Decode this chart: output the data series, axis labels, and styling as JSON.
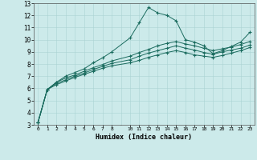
{
  "xlabel": "Humidex (Indice chaleur)",
  "bg_color": "#cceaea",
  "line_color": "#1a6b5e",
  "grid_color": "#aad4d4",
  "xlim": [
    -0.5,
    23.5
  ],
  "ylim": [
    3,
    13
  ],
  "xticks": [
    0,
    1,
    2,
    3,
    4,
    5,
    6,
    7,
    8,
    10,
    11,
    12,
    13,
    14,
    15,
    16,
    17,
    18,
    19,
    20,
    21,
    22,
    23
  ],
  "xtick_labels": [
    "0",
    "1",
    "2",
    "3",
    "4",
    "5",
    "6",
    "7",
    "8",
    "10",
    "11",
    "12",
    "13",
    "14",
    "15",
    "16",
    "17",
    "18",
    "19",
    "20",
    "21",
    "22",
    "23"
  ],
  "yticks": [
    3,
    4,
    5,
    6,
    7,
    8,
    9,
    10,
    11,
    12,
    13
  ],
  "line1_x": [
    0,
    1,
    2,
    3,
    4,
    5,
    6,
    7,
    8,
    10,
    11,
    12,
    13,
    14,
    15,
    16,
    17,
    18,
    19,
    20,
    21,
    22,
    23
  ],
  "line1_y": [
    3.2,
    5.9,
    6.5,
    7.0,
    7.3,
    7.6,
    8.1,
    8.5,
    9.0,
    10.15,
    11.4,
    12.65,
    12.2,
    12.0,
    11.55,
    10.0,
    9.8,
    9.5,
    8.85,
    9.1,
    9.45,
    9.8,
    10.6
  ],
  "line2_x": [
    0,
    1,
    2,
    3,
    4,
    5,
    6,
    7,
    8,
    10,
    11,
    12,
    13,
    14,
    15,
    16,
    17,
    18,
    19,
    20,
    21,
    22,
    23
  ],
  "line2_y": [
    3.2,
    5.9,
    6.5,
    6.85,
    7.1,
    7.4,
    7.7,
    7.95,
    8.25,
    8.65,
    8.95,
    9.2,
    9.5,
    9.7,
    9.85,
    9.65,
    9.5,
    9.3,
    9.1,
    9.25,
    9.4,
    9.6,
    9.85
  ],
  "line3_x": [
    0,
    1,
    2,
    3,
    4,
    5,
    6,
    7,
    8,
    10,
    11,
    12,
    13,
    14,
    15,
    16,
    17,
    18,
    19,
    20,
    21,
    22,
    23
  ],
  "line3_y": [
    3.2,
    5.9,
    6.4,
    6.7,
    7.0,
    7.25,
    7.55,
    7.8,
    8.05,
    8.35,
    8.65,
    8.9,
    9.1,
    9.3,
    9.5,
    9.3,
    9.15,
    8.95,
    8.8,
    9.0,
    9.15,
    9.3,
    9.55
  ],
  "line4_x": [
    0,
    1,
    2,
    3,
    4,
    5,
    6,
    7,
    8,
    10,
    11,
    12,
    13,
    14,
    15,
    16,
    17,
    18,
    19,
    20,
    21,
    22,
    23
  ],
  "line4_y": [
    3.2,
    5.9,
    6.3,
    6.6,
    6.9,
    7.15,
    7.4,
    7.65,
    7.85,
    8.1,
    8.3,
    8.55,
    8.75,
    8.95,
    9.1,
    8.95,
    8.75,
    8.65,
    8.55,
    8.7,
    8.9,
    9.1,
    9.35
  ]
}
